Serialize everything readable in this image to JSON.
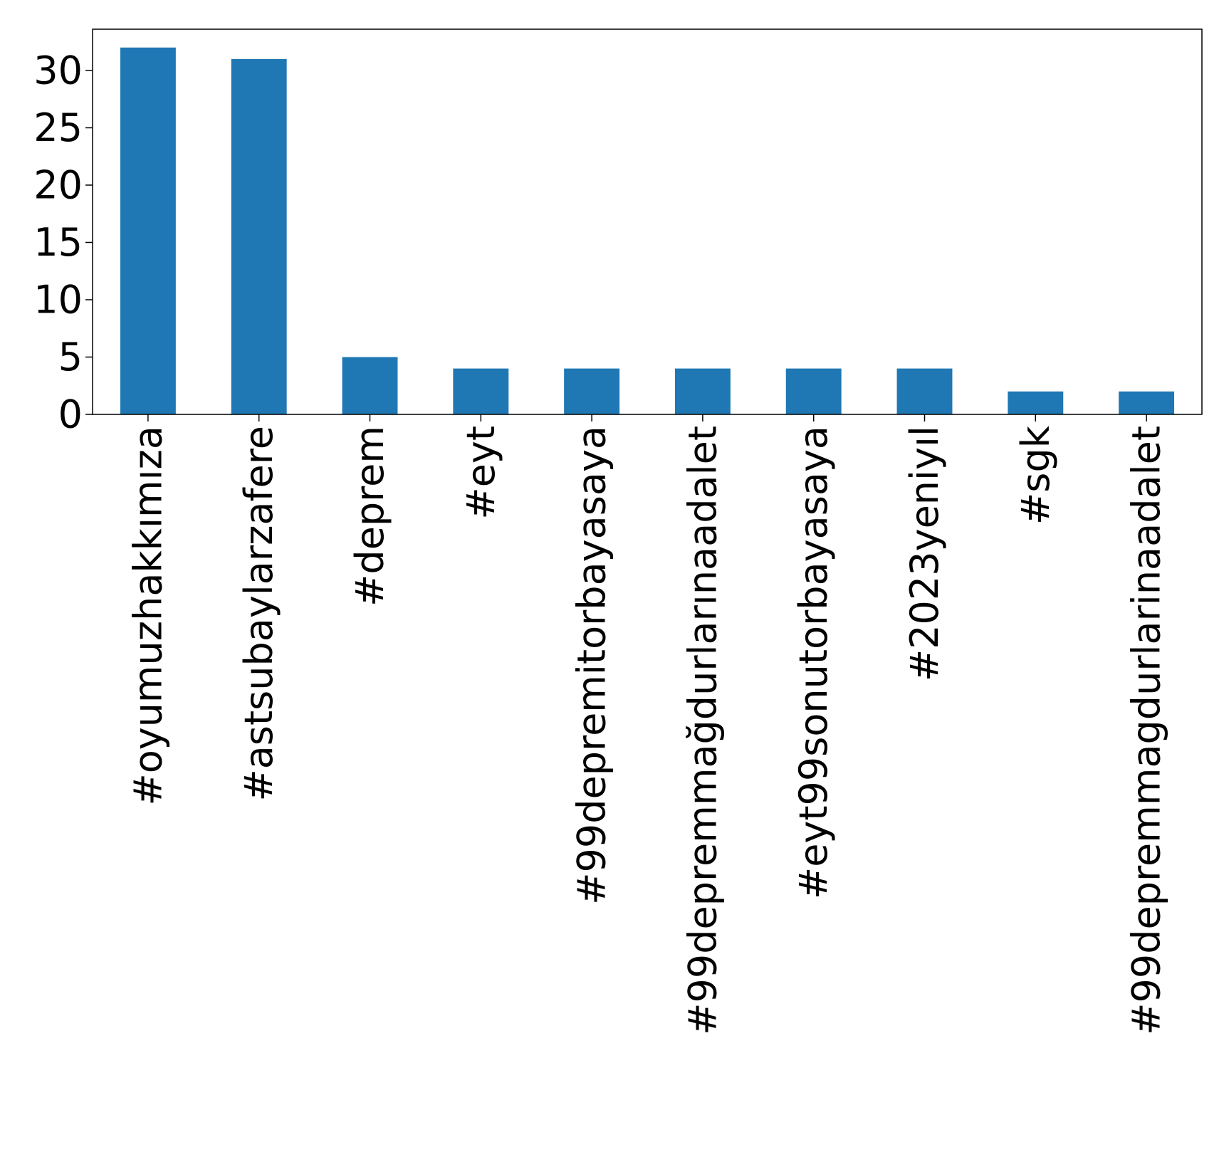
{
  "chart_data": {
    "type": "bar",
    "title": "",
    "xlabel": "",
    "ylabel": "",
    "categories": [
      "#oyumuzhakkımıza",
      "#astsubaylarzafere",
      "#deprem",
      "#eyt",
      "#99depremitorbayasaya",
      "#99depremmağdurlarınaadalet",
      "#eyt99sonutorbayasaya",
      "#2023yeniyıl",
      "#sgk",
      "#99depremmagdurlarinaadalet"
    ],
    "values": [
      32,
      31,
      5,
      4,
      4,
      4,
      4,
      4,
      2,
      2
    ],
    "yticks": [
      0,
      5,
      10,
      15,
      20,
      25,
      30
    ],
    "ylim": [
      0,
      33.6
    ],
    "grid": false,
    "legend": "none",
    "bar_color": "#1f77b4"
  }
}
